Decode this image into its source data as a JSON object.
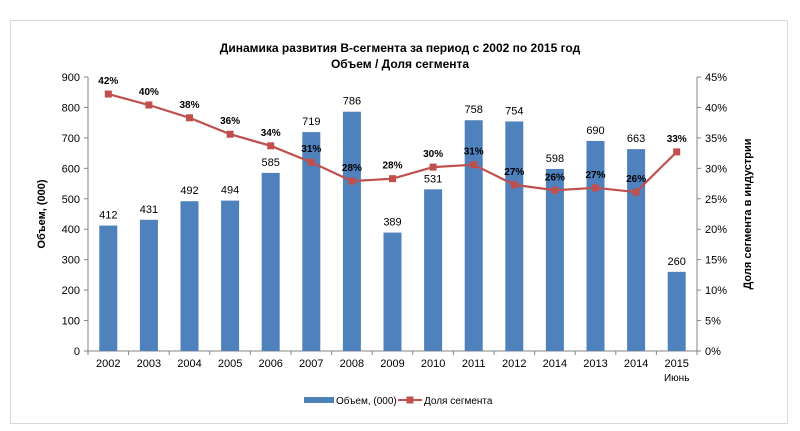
{
  "chart_data": {
    "type": "bar+line",
    "title": "Динамика развития B-сегмента за период  с 2002 по 2015 год",
    "subtitle": "Объем / Доля сегмента",
    "categories": [
      "2002",
      "2003",
      "2004",
      "2005",
      "2006",
      "2007",
      "2008",
      "2009",
      "2010",
      "2011",
      "2012",
      "2014",
      "2013",
      "2014",
      "2015"
    ],
    "category_sublabels": [
      "",
      "",
      "",
      "",
      "",
      "",
      "",
      "",
      "",
      "",
      "",
      "",
      "",
      "",
      "Июнь"
    ],
    "ylabel": "Объем, (000)",
    "ylabel_right": "Доля сегмента в индустрии",
    "ylim": [
      0,
      900
    ],
    "yticks": [
      0,
      100,
      200,
      300,
      400,
      500,
      600,
      700,
      800,
      900
    ],
    "ylim_right": [
      0,
      45
    ],
    "yticks_right": [
      0,
      5,
      10,
      15,
      20,
      25,
      30,
      35,
      40,
      45
    ],
    "grid": false,
    "legend": "bottom",
    "series": [
      {
        "name": "Объем, (000)",
        "type": "bar",
        "color": "#4f81bd",
        "values": [
          412,
          431,
          492,
          494,
          585,
          719,
          786,
          389,
          531,
          758,
          754,
          598,
          690,
          663,
          260
        ],
        "labels": [
          "412",
          "431",
          "492",
          "494",
          "585",
          "719",
          "786",
          "389",
          "531",
          "758",
          "754",
          "598",
          "690",
          "663",
          "260"
        ]
      },
      {
        "name": "Доля сегмента",
        "type": "line",
        "color": "#c0504d",
        "values": [
          42.2,
          40.4,
          38.3,
          35.6,
          33.7,
          31,
          27.9,
          28.3,
          30.2,
          30.6,
          27.3,
          26.4,
          26.8,
          26.1,
          32.7
        ],
        "labels": [
          "42%",
          "40%",
          "38%",
          "36%",
          "34%",
          "31%",
          "28%",
          "28%",
          "30%",
          "31%",
          "27%",
          "26%",
          "27%",
          "26%",
          "33%"
        ]
      }
    ]
  }
}
